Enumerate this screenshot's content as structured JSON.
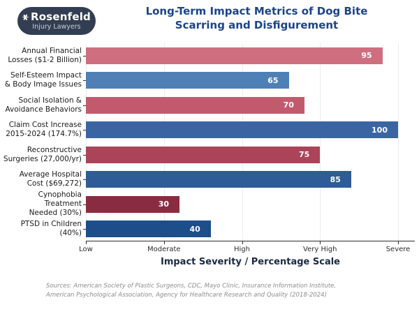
{
  "logo": {
    "name": "Rosenfeld",
    "subtitle": "Injury Lawyers",
    "background_color": "#333e53"
  },
  "title": {
    "line1": "Long-Term Impact Metrics of Dog Bite",
    "line2": "Scarring and Disfigurement",
    "color": "#1c4587"
  },
  "chart_data": {
    "type": "bar",
    "orientation": "horizontal",
    "title": "Long-Term Impact Metrics of Dog Bite Scarring and Disfigurement",
    "categories": [
      [
        "Annual Financial",
        "Losses ($1-2 Billion)"
      ],
      [
        "Self-Esteem Impact",
        "& Body Image Issues"
      ],
      [
        "Social Isolation &",
        "Avoidance Behaviors"
      ],
      [
        "Claim Cost Increase",
        "2015-2024 (174.7%)"
      ],
      [
        "Reconstructive",
        "Surgeries (27,000/yr)"
      ],
      [
        "Average Hospital",
        "Cost ($69,272)"
      ],
      [
        "Cynophobia Treatment",
        "Needed (30%)"
      ],
      [
        "PTSD in Children",
        "(40%)"
      ]
    ],
    "values": [
      95,
      65,
      70,
      100,
      75,
      85,
      30,
      40
    ],
    "bar_colors": [
      "#cf6e7f",
      "#4f80b5",
      "#c25a6d",
      "#3a65a2",
      "#ac4459",
      "#2d5c96",
      "#8a2c41",
      "#1d4e89"
    ],
    "value_label_color": "#ffffff",
    "xlabel": "Impact Severity / Percentage Scale",
    "x_tick_labels": [
      "Low",
      "Moderate",
      "High",
      "Very High",
      "Severe"
    ],
    "x_tick_values": [
      0,
      25,
      50,
      75,
      100
    ],
    "xlim": [
      0,
      105
    ],
    "grid": "vertical light-gray gridlines at each tick",
    "legend": "none",
    "grid_color": "#ececec"
  },
  "sources": {
    "line1": "Sources: American Society of Plastic Surgeons, CDC, Mayo Clinic, Insurance Information Institute,",
    "line2": "American Psychological Association, Agency for Healthcare Research and Quality (2018-2024)"
  }
}
